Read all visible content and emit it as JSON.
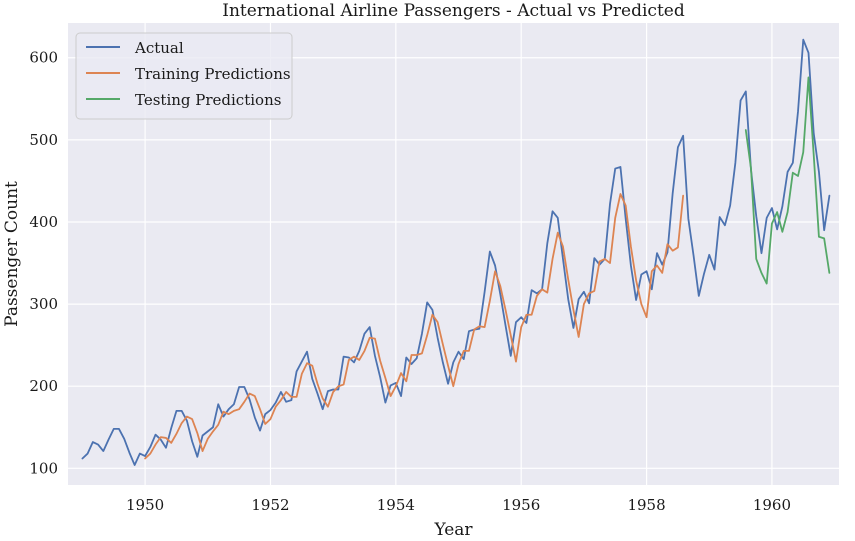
{
  "chart_data": {
    "type": "line",
    "title": "International Airline Passengers - Actual vs Predicted",
    "xlabel": "Year",
    "ylabel": "Passenger Count",
    "xlim": [
      1948.77,
      1961.07
    ],
    "ylim": [
      79.7,
      642.3
    ],
    "xticks": [
      1950,
      1952,
      1954,
      1956,
      1958,
      1960
    ],
    "xtick_labels": [
      "1950",
      "1952",
      "1954",
      "1956",
      "1958",
      "1960"
    ],
    "yticks": [
      100,
      200,
      300,
      400,
      500,
      600
    ],
    "ytick_labels": [
      "100",
      "200",
      "300",
      "400",
      "500",
      "600"
    ],
    "grid": true,
    "legend_position": "top-left",
    "series": [
      {
        "name": "Actual",
        "color": "#4c72b0",
        "start": 1949.0,
        "step": 0.083333,
        "values": [
          112,
          118,
          132,
          129,
          121,
          135,
          148,
          148,
          136,
          119,
          104,
          118,
          115,
          126,
          141,
          135,
          125,
          149,
          170,
          170,
          158,
          133,
          114,
          140,
          145,
          150,
          178,
          163,
          172,
          178,
          199,
          199,
          184,
          162,
          146,
          166,
          171,
          180,
          193,
          181,
          183,
          218,
          230,
          242,
          209,
          191,
          172,
          194,
          196,
          196,
          236,
          235,
          229,
          243,
          264,
          272,
          237,
          211,
          180,
          201,
          204,
          188,
          235,
          227,
          234,
          264,
          302,
          293,
          259,
          229,
          203,
          229,
          242,
          233,
          267,
          269,
          270,
          315,
          364,
          347,
          312,
          274,
          237,
          278,
          284,
          277,
          317,
          313,
          318,
          374,
          413,
          405,
          355,
          306,
          271,
          306,
          315,
          301,
          356,
          348,
          355,
          422,
          465,
          467,
          404,
          347,
          305,
          336,
          340,
          318,
          362,
          348,
          363,
          435,
          491,
          505,
          404,
          359,
          310,
          337,
          360,
          342,
          406,
          396,
          420,
          472,
          548,
          559,
          463,
          407,
          362,
          405,
          417,
          391,
          419,
          461,
          472,
          535,
          622,
          606,
          508,
          461,
          390,
          432
        ]
      },
      {
        "name": "Training Predictions",
        "color": "#dd8452",
        "start": 1950.0,
        "step": 0.083333,
        "values": [
          112,
          118,
          129,
          138,
          137,
          131,
          142,
          155,
          163,
          160,
          143,
          121,
          136,
          145,
          153,
          169,
          166,
          170,
          172,
          181,
          191,
          188,
          172,
          154,
          160,
          175,
          183,
          193,
          187,
          187,
          215,
          228,
          225,
          203,
          185,
          175,
          193,
          200,
          202,
          232,
          236,
          232,
          243,
          259,
          258,
          231,
          210,
          188,
          200,
          216,
          206,
          238,
          238,
          240,
          262,
          287,
          278,
          251,
          225,
          200,
          227,
          243,
          243,
          269,
          273,
          272,
          304,
          340,
          322,
          293,
          262,
          230,
          272,
          287,
          287,
          310,
          318,
          314,
          355,
          387,
          370,
          330,
          293,
          260,
          300,
          313,
          316,
          352,
          355,
          350,
          405,
          434,
          420,
          370,
          329,
          300,
          284,
          340,
          347,
          338,
          373,
          365,
          369,
          432
        ]
      },
      {
        "name": "Testing Predictions",
        "color": "#55a868",
        "start": 1959.583,
        "step": 0.083333,
        "values": [
          512,
          465,
          355,
          338,
          325,
          398,
          412,
          388,
          412,
          460,
          456,
          485,
          576,
          482,
          382,
          380,
          338
        ]
      }
    ]
  }
}
